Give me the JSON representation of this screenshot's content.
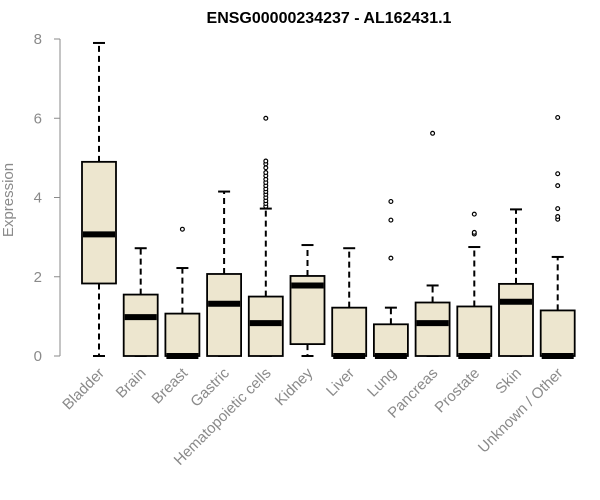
{
  "chart_data": {
    "type": "boxplot",
    "title": "ENSG00000234237 - AL162431.1",
    "xlabel": "",
    "ylabel": "Expression",
    "ylim": [
      0,
      8
    ],
    "yticks": [
      0,
      2,
      4,
      6,
      8
    ],
    "grid": false,
    "box_color": "#ede6cf",
    "categories": [
      "Bladder",
      "Brain",
      "Breast",
      "Gastric",
      "Hematopoietic cells",
      "Kidney",
      "Liver",
      "Lung",
      "Pancreas",
      "Prostate",
      "Skin",
      "Unknown / Other"
    ],
    "boxes": [
      {
        "category": "Bladder",
        "whisker_low": 0.0,
        "q1": 1.83,
        "median": 3.07,
        "q3": 4.9,
        "whisker_high": 7.9,
        "outliers": []
      },
      {
        "category": "Brain",
        "whisker_low": 0.0,
        "q1": 0.0,
        "median": 0.98,
        "q3": 1.55,
        "whisker_high": 2.72,
        "outliers": []
      },
      {
        "category": "Breast",
        "whisker_low": 0.0,
        "q1": 0.0,
        "median": 0.0,
        "q3": 1.07,
        "whisker_high": 2.22,
        "outliers": [
          3.2
        ]
      },
      {
        "category": "Gastric",
        "whisker_low": 0.0,
        "q1": 0.0,
        "median": 1.32,
        "q3": 2.07,
        "whisker_high": 4.15,
        "outliers": []
      },
      {
        "category": "Hematopoietic cells",
        "whisker_low": 0.0,
        "q1": 0.0,
        "median": 0.83,
        "q3": 1.5,
        "whisker_high": 3.72,
        "outliers": [
          3.78,
          3.85,
          3.92,
          4.0,
          4.08,
          4.15,
          4.22,
          4.3,
          4.38,
          4.46,
          4.55,
          4.63,
          4.75,
          4.85,
          4.92,
          6.0
        ]
      },
      {
        "category": "Kidney",
        "whisker_low": 0.0,
        "q1": 0.3,
        "median": 1.78,
        "q3": 2.02,
        "whisker_high": 2.8,
        "outliers": []
      },
      {
        "category": "Liver",
        "whisker_low": 0.0,
        "q1": 0.0,
        "median": 0.0,
        "q3": 1.22,
        "whisker_high": 2.72,
        "outliers": []
      },
      {
        "category": "Lung",
        "whisker_low": 0.0,
        "q1": 0.0,
        "median": 0.0,
        "q3": 0.8,
        "whisker_high": 1.22,
        "outliers": [
          2.47,
          3.43,
          3.9
        ]
      },
      {
        "category": "Pancreas",
        "whisker_low": 0.0,
        "q1": 0.0,
        "median": 0.83,
        "q3": 1.35,
        "whisker_high": 1.78,
        "outliers": [
          5.62
        ]
      },
      {
        "category": "Prostate",
        "whisker_low": 0.0,
        "q1": 0.0,
        "median": 0.0,
        "q3": 1.25,
        "whisker_high": 2.75,
        "outliers": [
          3.08,
          3.12,
          3.58
        ]
      },
      {
        "category": "Skin",
        "whisker_low": 0.0,
        "q1": 0.0,
        "median": 1.37,
        "q3": 1.82,
        "whisker_high": 3.7,
        "outliers": []
      },
      {
        "category": "Unknown / Other",
        "whisker_low": 0.0,
        "q1": 0.0,
        "median": 0.0,
        "q3": 1.15,
        "whisker_high": 2.5,
        "outliers": [
          3.45,
          3.52,
          3.72,
          4.3,
          4.6,
          6.02
        ]
      }
    ]
  }
}
